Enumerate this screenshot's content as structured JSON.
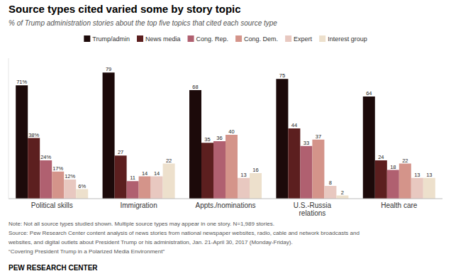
{
  "chart_data": {
    "type": "bar",
    "title": "Source types cited varied some by story topic",
    "subtitle": "% of Trump administration stories about the top five topics that cited each source type",
    "categories": [
      "Political skills",
      "Immigration",
      "Appts./nominations",
      "U.S.-Russia\nrelations",
      "Health care"
    ],
    "series": [
      {
        "name": "Trump/admin",
        "color": "#1c0a0a",
        "values": [
          71,
          79,
          68,
          75,
          64
        ],
        "value_labels": [
          "71%",
          "79",
          "68",
          "75",
          "64"
        ]
      },
      {
        "name": "News media",
        "color": "#5c1f1f",
        "values": [
          38,
          27,
          35,
          44,
          24
        ],
        "value_labels": [
          "38%",
          "27",
          "35",
          "44",
          "24"
        ]
      },
      {
        "name": "Cong. Rep.",
        "color": "#b06070",
        "values": [
          24,
          11,
          36,
          33,
          18
        ],
        "value_labels": [
          "24%",
          "11",
          "36",
          "33",
          "18"
        ]
      },
      {
        "name": "Cong. Dem.",
        "color": "#d4948a",
        "values": [
          17,
          14,
          40,
          37,
          22
        ],
        "value_labels": [
          "17%",
          "14",
          "40",
          "37",
          "22"
        ]
      },
      {
        "name": "Expert",
        "color": "#e8c8c0",
        "values": [
          12,
          14,
          13,
          8,
          13
        ],
        "value_labels": [
          "12%",
          "14",
          "13",
          "8",
          "13"
        ]
      },
      {
        "name": "Interest group",
        "color": "#ede0cc",
        "values": [
          6,
          22,
          16,
          2,
          13
        ],
        "value_labels": [
          "6%",
          "22",
          "16",
          "2",
          "13"
        ]
      }
    ],
    "ylim": [
      0,
      88
    ],
    "tick_labels": "x",
    "grid": false,
    "legend": "top",
    "data_labels": true,
    "annotations": [
      "Note: Not all source types studied shown. Multiple source types may appear in one story. N=1,989 stories.",
      "Source: Pew Research Center content analysis of news stories from national newspaper websites, radio, cable and network broadcasts and",
      "websites, and digital outlets about President Trump or his administration, Jan. 21-April 30, 2017 (Monday-Friday).",
      "“Covering President Trump in a Polarized Media Environment”",
      "PEW RESEARCH CENTER"
    ]
  }
}
